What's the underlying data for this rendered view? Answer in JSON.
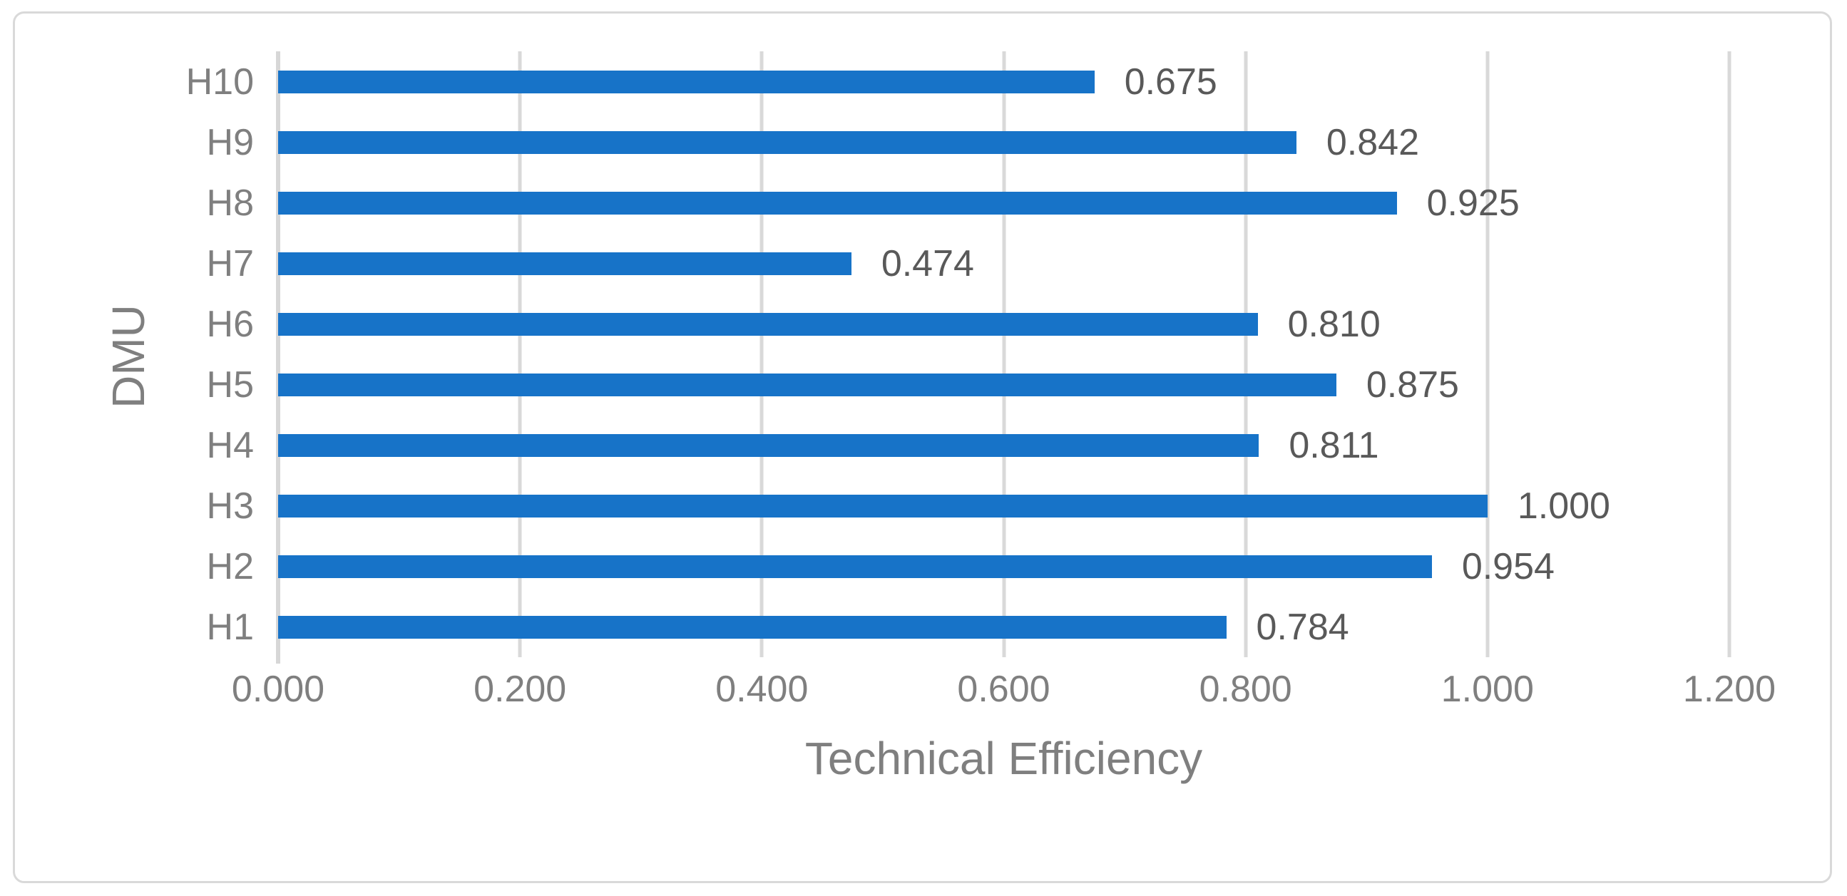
{
  "figure": {
    "background": "#FFFFFF",
    "border_color": "#D9D9D9"
  },
  "chart_data": {
    "type": "bar",
    "orientation": "horizontal",
    "title": "",
    "xlabel": "Technical Efficiency",
    "ylabel": "DMU",
    "categories": [
      "H10",
      "H9",
      "H8",
      "H7",
      "H6",
      "H5",
      "H4",
      "H3",
      "H2",
      "H1"
    ],
    "values": [
      0.675,
      0.842,
      0.925,
      0.474,
      0.81,
      0.875,
      0.811,
      1.0,
      0.954,
      0.784
    ],
    "value_labels": [
      "0.675",
      "0.842",
      "0.925",
      "0.474",
      "0.810",
      "0.875",
      "0.811",
      "1.000",
      "0.954",
      "0.784"
    ],
    "x_ticks": [
      "0.000",
      "0.200",
      "0.400",
      "0.600",
      "0.800",
      "1.000",
      "1.200"
    ],
    "xlim": [
      0,
      1.2
    ],
    "grid": "vertical",
    "legend": "none",
    "bar_color": "#1773C8",
    "value_label_color": "#595959",
    "axis_text_color": "#7F7F7F",
    "gridline_color": "#D9D9D9",
    "axis_line_color": "#D7D7D7"
  }
}
